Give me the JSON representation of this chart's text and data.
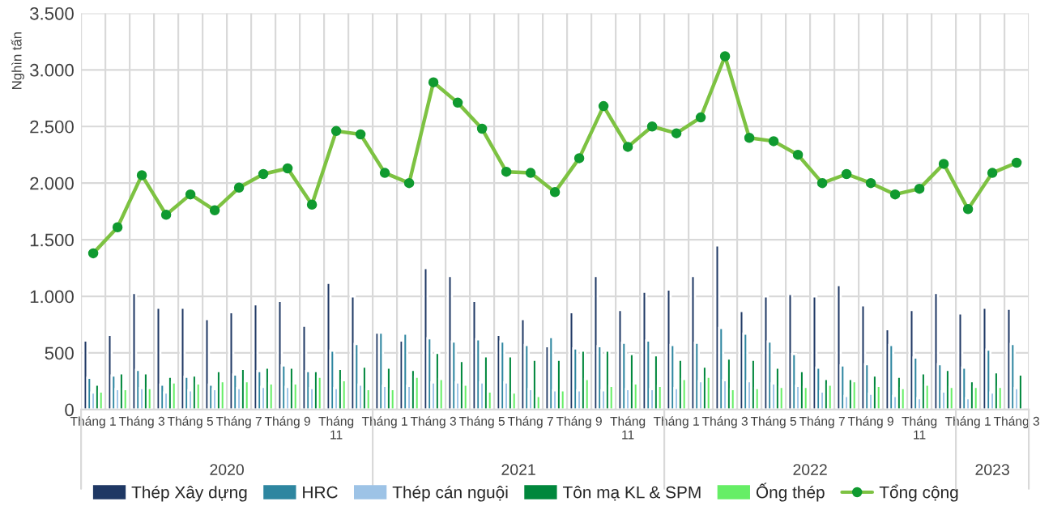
{
  "chart_data": {
    "type": "bar",
    "ylabel": "Nghìn tấn",
    "categories": [
      "Tháng 1",
      null,
      "Tháng 3",
      null,
      "Tháng 5",
      null,
      "Tháng 7",
      null,
      "Tháng 9",
      null,
      "Tháng 11",
      null,
      "Tháng 1",
      null,
      "Tháng 3",
      null,
      "Tháng 5",
      null,
      "Tháng 7",
      null,
      "Tháng 9",
      null,
      "Tháng 11",
      null,
      "Tháng 1",
      null,
      "Tháng 3",
      null,
      "Tháng 5",
      null,
      "Tháng 7",
      null,
      "Tháng 9",
      null,
      "Tháng 11",
      null,
      "Tháng 1",
      null,
      "Tháng 3"
    ],
    "series": [
      {
        "name": "Thép Xây dựng",
        "color": "#1f3864",
        "values": [
          610,
          660,
          1030,
          900,
          900,
          800,
          860,
          930,
          960,
          740,
          1120,
          1000,
          680,
          610,
          1250,
          1180,
          960,
          660,
          800,
          560,
          860,
          1180,
          880,
          1040,
          1060,
          1180,
          1450,
          870,
          1000,
          1020,
          1000,
          1100,
          920,
          710,
          880,
          1030,
          850,
          900,
          890
        ]
      },
      {
        "name": "HRC",
        "color": "#2e86a0",
        "values": [
          280,
          300,
          350,
          220,
          290,
          220,
          310,
          340,
          390,
          340,
          520,
          580,
          680,
          670,
          630,
          600,
          620,
          600,
          570,
          640,
          540,
          560,
          590,
          610,
          570,
          590,
          720,
          670,
          600,
          490,
          370,
          390,
          400,
          570,
          460,
          400,
          370,
          530,
          580
        ]
      },
      {
        "name": "Thép cán nguội",
        "color": "#9dc3e6",
        "values": [
          150,
          180,
          190,
          150,
          170,
          180,
          190,
          200,
          200,
          190,
          190,
          220,
          210,
          210,
          240,
          240,
          240,
          240,
          180,
          170,
          170,
          170,
          180,
          180,
          190,
          250,
          260,
          250,
          230,
          210,
          160,
          120,
          140,
          120,
          100,
          160,
          100,
          150,
          190
        ]
      },
      {
        "name": "Tôn mạ KL & SPM",
        "color": "#00873c",
        "values": [
          220,
          320,
          320,
          290,
          300,
          340,
          360,
          370,
          370,
          340,
          360,
          380,
          370,
          350,
          500,
          430,
          470,
          470,
          440,
          440,
          520,
          520,
          490,
          480,
          440,
          380,
          450,
          440,
          370,
          340,
          270,
          270,
          300,
          290,
          320,
          350,
          250,
          330,
          310
        ]
      },
      {
        "name": "Ống thép",
        "color": "#66ee66",
        "values": [
          160,
          180,
          190,
          240,
          230,
          250,
          250,
          230,
          230,
          290,
          260,
          180,
          180,
          290,
          270,
          220,
          160,
          150,
          120,
          170,
          270,
          210,
          230,
          210,
          270,
          290,
          180,
          190,
          200,
          200,
          220,
          250,
          210,
          190,
          220,
          200,
          200,
          200,
          null
        ]
      },
      {
        "name": "Tổng cộng",
        "type": "line",
        "color": "#7dc242",
        "marker": "circle",
        "values": [
          1380,
          1610,
          2070,
          1720,
          1900,
          1760,
          1960,
          2080,
          2130,
          1810,
          2460,
          2430,
          2090,
          2000,
          2890,
          2710,
          2480,
          2100,
          2090,
          1920,
          2220,
          2680,
          2320,
          2500,
          2440,
          2580,
          3120,
          2400,
          2370,
          2250,
          2000,
          2080,
          2000,
          1900,
          1950,
          2170,
          1770,
          2090,
          2180
        ]
      }
    ],
    "ylim": [
      0,
      3500
    ],
    "yticks": [
      0,
      {
        "value": 500,
        "label": "500"
      },
      {
        "value": 1000,
        "label": "1.000"
      },
      {
        "value": 1500,
        "label": "1.500"
      },
      {
        "value": 2000,
        "label": "2.000"
      },
      {
        "value": 2500,
        "label": "2.500"
      },
      {
        "value": 3000,
        "label": "3.000"
      },
      {
        "value": 3500,
        "label": "3.500"
      }
    ],
    "grid": true,
    "legend": "bottom",
    "annotations": [
      "2020",
      "2021",
      "2022",
      "2023"
    ]
  }
}
